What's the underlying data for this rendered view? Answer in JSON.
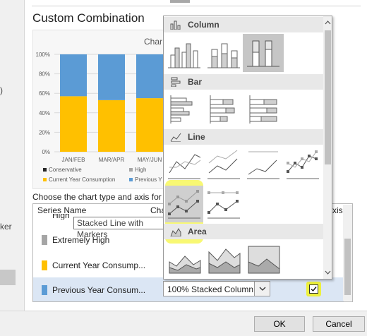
{
  "dialog": {
    "section_title": "Custom Combination",
    "chart_title_clip": "Char",
    "choose_label": "Choose the chart type and axis for y",
    "left_clip_label": "ker",
    "left_clip_paren": ")",
    "ok_label": "OK",
    "cancel_label": "Cancel"
  },
  "chart_data": {
    "type": "bar",
    "categories": [
      "JAN/FEB",
      "MAR/APR",
      "MAY/JUN"
    ],
    "ylim": [
      0,
      100
    ],
    "yticks": [
      "0%",
      "20%",
      "40%",
      "60%",
      "80%",
      "100%"
    ],
    "series": [
      {
        "name": "Current Year Consumption",
        "color": "#ffc000",
        "values": [
          57,
          53,
          55
        ]
      },
      {
        "name": "Previous Year Consumption",
        "color": "#5b9bd5",
        "values": [
          43,
          47,
          45
        ]
      }
    ],
    "legend": [
      {
        "label": "Conservative",
        "color": "#262626"
      },
      {
        "label": "High",
        "color": "#a5a5a5"
      },
      {
        "label": "Current Year Consumption",
        "color": "#ffc000"
      },
      {
        "label": "Previous Y",
        "color": "#5b9bd5"
      }
    ]
  },
  "table": {
    "col_series": "Series Name",
    "col_chart_clip": "Cha",
    "col_axis_clip": "xis",
    "top_clip": "High",
    "rows": [
      {
        "label": "Extremely High",
        "color": "#a5a5a5"
      },
      {
        "label": "Current Year Consump...",
        "color": "#ffc000"
      },
      {
        "label": "Previous Year Consum...",
        "color": "#5b9bd5"
      }
    ],
    "tooltip": "Stacked Line with Markers",
    "combo_value": "100% Stacked Column"
  },
  "dropdown": {
    "headers": [
      "Column",
      "Bar",
      "Line",
      "Area"
    ]
  }
}
